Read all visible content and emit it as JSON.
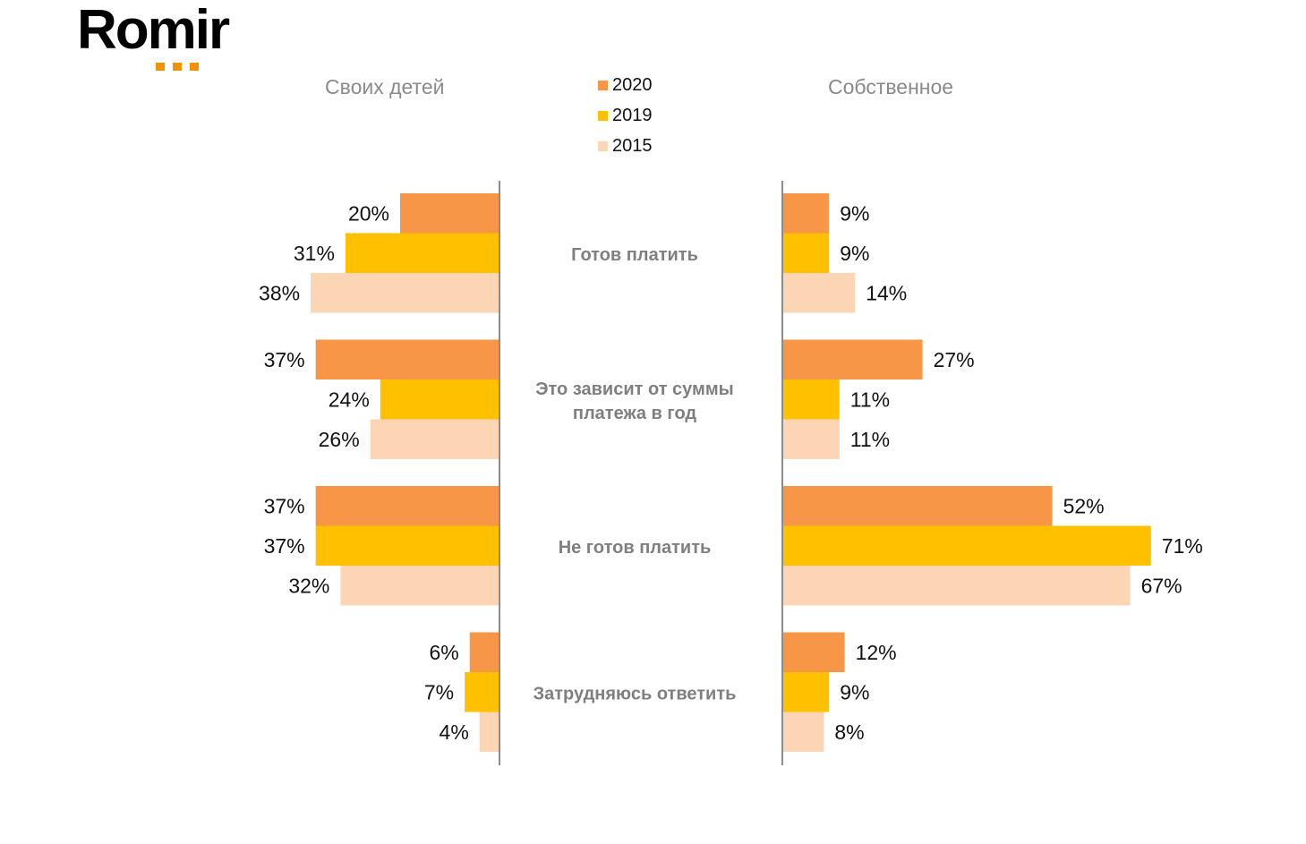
{
  "logo": {
    "text": "Romir"
  },
  "chart_data": {
    "type": "bar",
    "orientation": "horizontal",
    "unit": "%",
    "categories": [
      "Готов платить",
      "Это зависит от суммы платежа в год",
      "Не готов платить",
      "Затрудняюсь ответить"
    ],
    "category_lines": [
      [
        "Готов платить"
      ],
      [
        "Это зависит от суммы",
        "платежа в год"
      ],
      [
        "Не готов платить"
      ],
      [
        "Затрудняюсь ответить"
      ]
    ],
    "legend": {
      "position": "top-center"
    },
    "series_meta": [
      {
        "name": "2020",
        "color": "#f79646"
      },
      {
        "name": "2019",
        "color": "#ffc000"
      },
      {
        "name": "2015",
        "color": "#fcd5b5"
      }
    ],
    "panels": [
      {
        "title": "Своих детей",
        "direction": "left",
        "series": [
          {
            "name": "2020",
            "values": [
              20,
              37,
              37,
              6
            ]
          },
          {
            "name": "2019",
            "values": [
              31,
              24,
              37,
              7
            ]
          },
          {
            "name": "2015",
            "values": [
              38,
              26,
              32,
              4
            ]
          }
        ]
      },
      {
        "title": "Собственное",
        "direction": "right",
        "series": [
          {
            "name": "2020",
            "values": [
              9,
              27,
              52,
              12
            ]
          },
          {
            "name": "2019",
            "values": [
              9,
              11,
              71,
              9
            ]
          },
          {
            "name": "2015",
            "values": [
              14,
              11,
              67,
              8
            ]
          }
        ]
      }
    ]
  }
}
